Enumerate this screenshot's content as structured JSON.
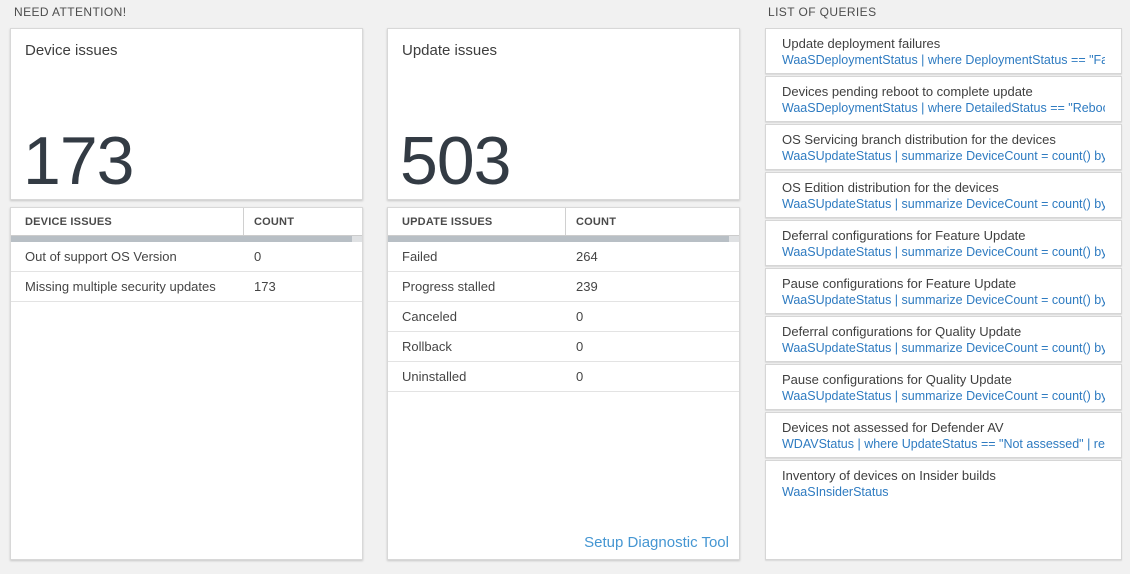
{
  "sections": {
    "need_attention": "NEED ATTENTION!",
    "list_of_queries": "LIST OF QUERIES"
  },
  "cards": {
    "device": {
      "title": "Device issues",
      "big_count": "173"
    },
    "update": {
      "title": "Update issues",
      "big_count": "503"
    }
  },
  "device_table": {
    "col_issue": "DEVICE ISSUES",
    "col_count": "COUNT",
    "rows": [
      {
        "label": "Out of support OS Version",
        "count": "0"
      },
      {
        "label": "Missing multiple security updates",
        "count": "173"
      }
    ]
  },
  "update_table": {
    "col_issue": "UPDATE ISSUES",
    "col_count": "COUNT",
    "rows": [
      {
        "label": "Failed",
        "count": "264"
      },
      {
        "label": "Progress stalled",
        "count": "239"
      },
      {
        "label": "Canceled",
        "count": "0"
      },
      {
        "label": "Rollback",
        "count": "0"
      },
      {
        "label": "Uninstalled",
        "count": "0"
      }
    ],
    "setup_link": "Setup Diagnostic Tool"
  },
  "queries": [
    {
      "title": "Update deployment failures",
      "query": "WaaSDeploymentStatus | where DeploymentStatus == \"Failed\" |..."
    },
    {
      "title": "Devices pending reboot to complete update",
      "query": "WaaSDeploymentStatus | where DetailedStatus == \"Reboot pend..."
    },
    {
      "title": "OS Servicing branch distribution for the devices",
      "query": "WaaSUpdateStatus | summarize DeviceCount = count() by OSSer..."
    },
    {
      "title": "OS Edition distribution for the devices",
      "query": "WaaSUpdateStatus | summarize DeviceCount = count() by OSEdit..."
    },
    {
      "title": "Deferral configurations for Feature Update",
      "query": "WaaSUpdateStatus | summarize DeviceCount = count() by Featur..."
    },
    {
      "title": "Pause configurations for Feature Update",
      "query": "WaaSUpdateStatus | summarize DeviceCount = count() by Featur..."
    },
    {
      "title": "Deferral configurations for Quality Update",
      "query": "WaaSUpdateStatus | summarize DeviceCount = count() by Qualit..."
    },
    {
      "title": "Pause configurations for Quality Update",
      "query": "WaaSUpdateStatus | summarize DeviceCount = count() by Qualit..."
    },
    {
      "title": "Devices not assessed for Defender AV",
      "query": "WDAVStatus | where UpdateStatus == \"Not assessed\" | render ta..."
    },
    {
      "title": "Inventory of devices on Insider builds",
      "query": "WaaSInsiderStatus"
    }
  ],
  "colors": {
    "page_bg": "#f1f1f1",
    "big_number": "#333b44",
    "query_link_blue": "#2e7bc1",
    "setup_link_blue": "#4596d2",
    "scroll_thumb": "#b8bfc5"
  }
}
